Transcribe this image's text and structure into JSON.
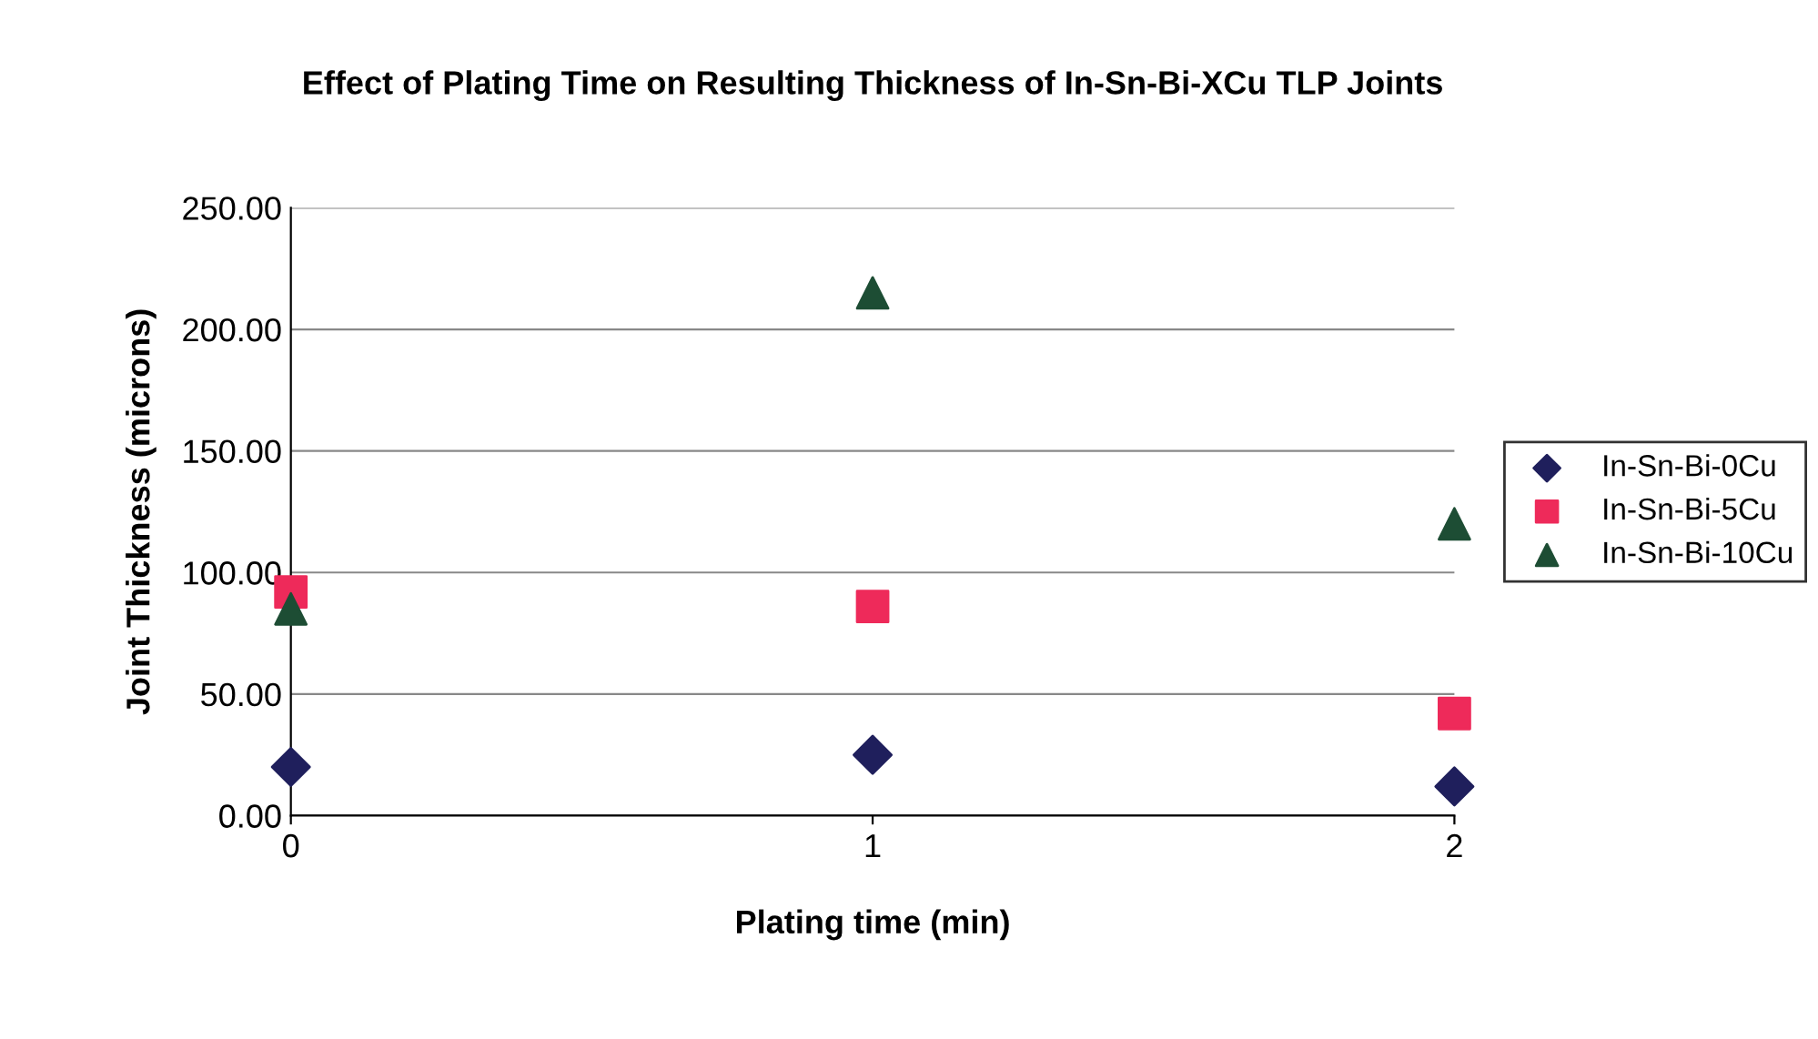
{
  "chart_data": {
    "type": "scatter",
    "title": "Effect of Plating Time on Resulting Thickness of In-Sn-Bi-XCu TLP Joints",
    "xlabel": "Plating time (min)",
    "ylabel": "Joint Thickness (microns)",
    "x": [
      0,
      1,
      2
    ],
    "series": [
      {
        "name": "In-Sn-Bi-0Cu",
        "color": "#1f1f5c",
        "marker": "diamond",
        "values": [
          20,
          25,
          12
        ]
      },
      {
        "name": "In-Sn-Bi-5Cu",
        "color": "#ee2a5a",
        "marker": "square",
        "values": [
          92,
          86,
          42
        ]
      },
      {
        "name": "In-Sn-Bi-10Cu",
        "color": "#1d4d34",
        "marker": "triangle",
        "values": [
          85,
          215,
          120
        ]
      }
    ],
    "xlim": [
      0,
      2
    ],
    "xticks": [
      0,
      1,
      2
    ],
    "ylim": [
      0,
      250
    ],
    "yticks": [
      {
        "value": 0,
        "label": "0.00"
      },
      {
        "value": 50,
        "label": "50.00"
      },
      {
        "value": 100,
        "label": "100.00"
      },
      {
        "value": 150,
        "label": "150.00"
      },
      {
        "value": 200,
        "label": "200.00"
      },
      {
        "value": 250,
        "label": "250.00"
      }
    ],
    "grid": "y",
    "legend": "right"
  }
}
